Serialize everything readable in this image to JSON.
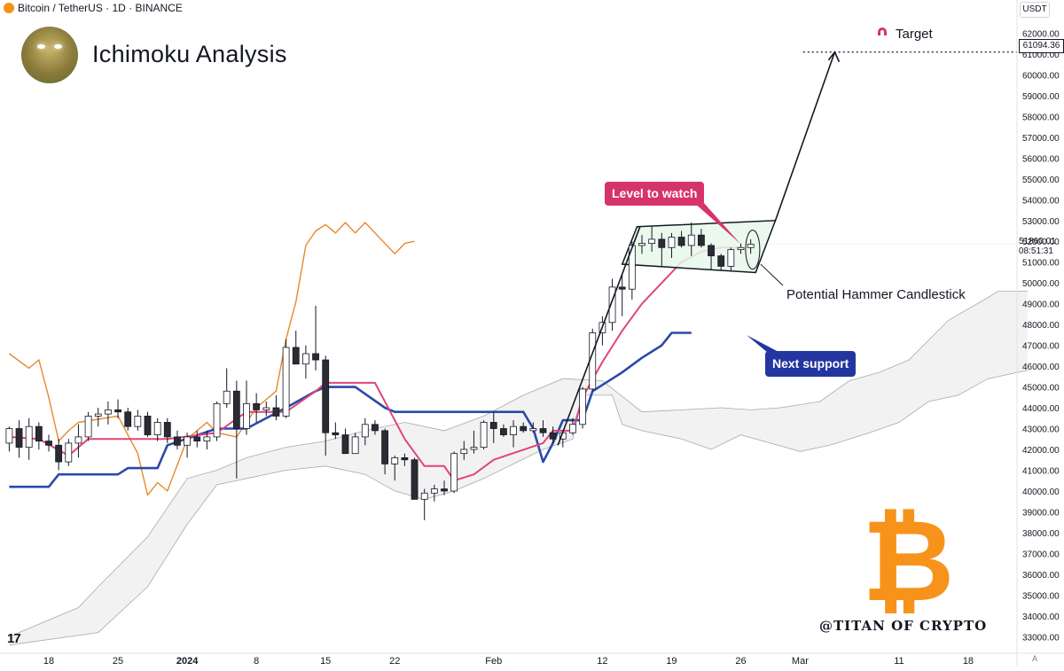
{
  "header": {
    "symbol_line": "Bitcoin / TetherUS · 1D · BINANCE"
  },
  "title": "Ichimoku Analysis",
  "axis_unit": "USDT",
  "target_label": "Target",
  "target_price": "61094.36",
  "current_price": {
    "price": "51860.01",
    "countdown": "08:51:31"
  },
  "annotations": {
    "level_to_watch": "Level to watch",
    "next_support": "Next support",
    "hammer": "Potential Hammer Candlestick"
  },
  "watermark": "@TITAN OF CRYPTO",
  "tv_logo": "17",
  "auto_button": "A",
  "colors": {
    "tenkan": "#e0457b",
    "kijun": "#2b4aa8",
    "chikou": "#e8872c",
    "cloud": "#eeeeee",
    "cloud_edge": "#aaaaaa",
    "callout_pink": "#d6336c",
    "callout_blue": "#2336a0",
    "btc": "#f7931a",
    "box_fill": "#e6f7ea"
  },
  "icons": {
    "coin": "bitcoin-coin-icon",
    "target": "magnet-icon",
    "brand": "bitcoin-logo"
  },
  "chart_data": {
    "type": "candlestick",
    "timeframe": "1D",
    "ylim": [
      32500,
      63000
    ],
    "y_ticks": [
      33000,
      34000,
      35000,
      36000,
      37000,
      38000,
      39000,
      40000,
      41000,
      42000,
      43000,
      44000,
      45000,
      46000,
      47000,
      48000,
      49000,
      50000,
      51000,
      52000,
      53000,
      54000,
      55000,
      56000,
      57000,
      58000,
      59000,
      60000,
      61000,
      62000
    ],
    "x_ticks": [
      {
        "label": "18",
        "day": 0
      },
      {
        "label": "25",
        "day": 7
      },
      {
        "label": "2024",
        "day": 14
      },
      {
        "label": "8",
        "day": 21
      },
      {
        "label": "15",
        "day": 28
      },
      {
        "label": "22",
        "day": 35
      },
      {
        "label": "Feb",
        "day": 45
      },
      {
        "label": "12",
        "day": 56
      },
      {
        "label": "19",
        "day": 63
      },
      {
        "label": "26",
        "day": 70
      },
      {
        "label": "Mar",
        "day": 76
      },
      {
        "label": "11",
        "day": 86
      },
      {
        "label": "18",
        "day": 93
      }
    ],
    "candles": [
      {
        "day": -4,
        "o": 42300,
        "h": 43100,
        "l": 41900,
        "c": 43000
      },
      {
        "day": -3,
        "o": 43000,
        "h": 43400,
        "l": 41600,
        "c": 42100
      },
      {
        "day": -2,
        "o": 42100,
        "h": 43500,
        "l": 41500,
        "c": 43100
      },
      {
        "day": -1,
        "o": 43100,
        "h": 43300,
        "l": 42000,
        "c": 42400
      },
      {
        "day": 0,
        "o": 42400,
        "h": 42700,
        "l": 41900,
        "c": 42200
      },
      {
        "day": 1,
        "o": 42200,
        "h": 42500,
        "l": 41000,
        "c": 41400
      },
      {
        "day": 2,
        "o": 41400,
        "h": 42500,
        "l": 41200,
        "c": 42300
      },
      {
        "day": 3,
        "o": 42300,
        "h": 43200,
        "l": 41600,
        "c": 42600
      },
      {
        "day": 4,
        "o": 42600,
        "h": 43800,
        "l": 42400,
        "c": 43600
      },
      {
        "day": 5,
        "o": 43600,
        "h": 44000,
        "l": 43100,
        "c": 43700
      },
      {
        "day": 6,
        "o": 43700,
        "h": 44300,
        "l": 43200,
        "c": 43900
      },
      {
        "day": 7,
        "o": 43900,
        "h": 44400,
        "l": 43500,
        "c": 43800
      },
      {
        "day": 8,
        "o": 43800,
        "h": 44000,
        "l": 42900,
        "c": 43100
      },
      {
        "day": 9,
        "o": 43100,
        "h": 43900,
        "l": 42900,
        "c": 43600
      },
      {
        "day": 10,
        "o": 43600,
        "h": 43800,
        "l": 42600,
        "c": 42700
      },
      {
        "day": 11,
        "o": 42700,
        "h": 43500,
        "l": 42400,
        "c": 43300
      },
      {
        "day": 12,
        "o": 43300,
        "h": 43500,
        "l": 42300,
        "c": 42600
      },
      {
        "day": 13,
        "o": 42600,
        "h": 42900,
        "l": 42000,
        "c": 42200
      },
      {
        "day": 14,
        "o": 42200,
        "h": 42800,
        "l": 41600,
        "c": 42600
      },
      {
        "day": 15,
        "o": 42600,
        "h": 42900,
        "l": 42100,
        "c": 42400
      },
      {
        "day": 16,
        "o": 42400,
        "h": 42900,
        "l": 42000,
        "c": 42600
      },
      {
        "day": 17,
        "o": 42600,
        "h": 44300,
        "l": 42400,
        "c": 44200
      },
      {
        "day": 18,
        "o": 44200,
        "h": 45900,
        "l": 44000,
        "c": 44800
      },
      {
        "day": 19,
        "o": 44800,
        "h": 45300,
        "l": 40600,
        "c": 43000
      },
      {
        "day": 20,
        "o": 43000,
        "h": 45300,
        "l": 42700,
        "c": 44200
      },
      {
        "day": 21,
        "o": 44200,
        "h": 44700,
        "l": 43300,
        "c": 43900
      },
      {
        "day": 22,
        "o": 43900,
        "h": 44300,
        "l": 43600,
        "c": 44000
      },
      {
        "day": 23,
        "o": 44000,
        "h": 44600,
        "l": 43400,
        "c": 43600
      },
      {
        "day": 24,
        "o": 43600,
        "h": 47300,
        "l": 43500,
        "c": 46900
      },
      {
        "day": 25,
        "o": 46900,
        "h": 47700,
        "l": 46200,
        "c": 46100
      },
      {
        "day": 26,
        "o": 46100,
        "h": 47000,
        "l": 45400,
        "c": 46600
      },
      {
        "day": 27,
        "o": 46600,
        "h": 48900,
        "l": 45800,
        "c": 46300
      },
      {
        "day": 28,
        "o": 46300,
        "h": 46500,
        "l": 41700,
        "c": 42800
      },
      {
        "day": 29,
        "o": 42800,
        "h": 43300,
        "l": 42500,
        "c": 42700
      },
      {
        "day": 30,
        "o": 42700,
        "h": 43000,
        "l": 41800,
        "c": 41800
      },
      {
        "day": 31,
        "o": 41800,
        "h": 42800,
        "l": 41800,
        "c": 42600
      },
      {
        "day": 32,
        "o": 42600,
        "h": 43500,
        "l": 42200,
        "c": 43200
      },
      {
        "day": 33,
        "o": 43200,
        "h": 43400,
        "l": 42700,
        "c": 42900
      },
      {
        "day": 34,
        "o": 42900,
        "h": 43000,
        "l": 40800,
        "c": 41300
      },
      {
        "day": 35,
        "o": 41300,
        "h": 41700,
        "l": 40500,
        "c": 41600
      },
      {
        "day": 36,
        "o": 41600,
        "h": 41800,
        "l": 41200,
        "c": 41500
      },
      {
        "day": 37,
        "o": 41500,
        "h": 41600,
        "l": 39600,
        "c": 39600
      },
      {
        "day": 38,
        "o": 39600,
        "h": 40100,
        "l": 38600,
        "c": 39900
      },
      {
        "day": 39,
        "o": 39900,
        "h": 40300,
        "l": 39500,
        "c": 40100
      },
      {
        "day": 40,
        "o": 40100,
        "h": 40500,
        "l": 39800,
        "c": 40000
      },
      {
        "day": 41,
        "o": 40000,
        "h": 41900,
        "l": 39900,
        "c": 41800
      },
      {
        "day": 42,
        "o": 41800,
        "h": 42400,
        "l": 41500,
        "c": 42000
      },
      {
        "day": 43,
        "o": 42000,
        "h": 42900,
        "l": 41800,
        "c": 42100
      },
      {
        "day": 44,
        "o": 42100,
        "h": 43400,
        "l": 42000,
        "c": 43300
      },
      {
        "day": 45,
        "o": 43300,
        "h": 43800,
        "l": 42300,
        "c": 43000
      },
      {
        "day": 46,
        "o": 43000,
        "h": 43200,
        "l": 42600,
        "c": 42700
      },
      {
        "day": 47,
        "o": 42700,
        "h": 43400,
        "l": 42100,
        "c": 43100
      },
      {
        "day": 48,
        "o": 43100,
        "h": 43300,
        "l": 42800,
        "c": 42900
      },
      {
        "day": 49,
        "o": 42900,
        "h": 43300,
        "l": 42800,
        "c": 43000
      },
      {
        "day": 50,
        "o": 43000,
        "h": 43400,
        "l": 42600,
        "c": 42800
      },
      {
        "day": 51,
        "o": 42800,
        "h": 43100,
        "l": 42300,
        "c": 42500
      },
      {
        "day": 52,
        "o": 42500,
        "h": 42900,
        "l": 42100,
        "c": 42800
      },
      {
        "day": 53,
        "o": 42800,
        "h": 43500,
        "l": 42700,
        "c": 43200
      },
      {
        "day": 54,
        "o": 43200,
        "h": 45000,
        "l": 43000,
        "c": 44900
      },
      {
        "day": 55,
        "o": 44900,
        "h": 47800,
        "l": 44800,
        "c": 47600
      },
      {
        "day": 56,
        "o": 47600,
        "h": 48400,
        "l": 47000,
        "c": 48100
      },
      {
        "day": 57,
        "o": 48100,
        "h": 50200,
        "l": 47700,
        "c": 49800
      },
      {
        "day": 58,
        "o": 49800,
        "h": 50400,
        "l": 48400,
        "c": 49700
      },
      {
        "day": 59,
        "o": 49700,
        "h": 52000,
        "l": 49200,
        "c": 51800
      },
      {
        "day": 60,
        "o": 51800,
        "h": 52300,
        "l": 51400,
        "c": 51900
      },
      {
        "day": 61,
        "o": 51900,
        "h": 52700,
        "l": 51500,
        "c": 52100
      },
      {
        "day": 62,
        "o": 52100,
        "h": 52400,
        "l": 50800,
        "c": 51700
      },
      {
        "day": 63,
        "o": 51700,
        "h": 52400,
        "l": 51200,
        "c": 52200
      },
      {
        "day": 64,
        "o": 52200,
        "h": 52500,
        "l": 51700,
        "c": 51800
      },
      {
        "day": 65,
        "o": 51800,
        "h": 52900,
        "l": 51300,
        "c": 52300
      },
      {
        "day": 66,
        "o": 52300,
        "h": 52600,
        "l": 51700,
        "c": 51800
      },
      {
        "day": 67,
        "o": 51800,
        "h": 51900,
        "l": 50600,
        "c": 51300
      },
      {
        "day": 68,
        "o": 51300,
        "h": 51400,
        "l": 50600,
        "c": 50800
      },
      {
        "day": 69,
        "o": 50800,
        "h": 51700,
        "l": 50600,
        "c": 51600
      },
      {
        "day": 70,
        "o": 51600,
        "h": 51900,
        "l": 51400,
        "c": 51700
      },
      {
        "day": 71,
        "o": 51700,
        "h": 52100,
        "l": 51400,
        "c": 51860
      }
    ],
    "tenkan_sen": [
      [
        -4,
        42600
      ],
      [
        -1,
        42500
      ],
      [
        2,
        41700
      ],
      [
        4,
        42500
      ],
      [
        12,
        42500
      ],
      [
        17,
        42800
      ],
      [
        20,
        43800
      ],
      [
        24,
        43800
      ],
      [
        27,
        44800
      ],
      [
        28,
        45200
      ],
      [
        31,
        45200
      ],
      [
        33,
        45200
      ],
      [
        36,
        42500
      ],
      [
        38,
        41200
      ],
      [
        40,
        41200
      ],
      [
        41,
        40500
      ],
      [
        43,
        40800
      ],
      [
        45,
        41500
      ],
      [
        50,
        42300
      ],
      [
        51,
        42900
      ],
      [
        53,
        42900
      ],
      [
        54,
        44500
      ],
      [
        56,
        46200
      ],
      [
        58,
        47700
      ],
      [
        60,
        49000
      ],
      [
        62,
        50000
      ],
      [
        64,
        51000
      ],
      [
        66,
        51500
      ],
      [
        68,
        51700
      ],
      [
        70,
        51700
      ]
    ],
    "kijun_sen": [
      [
        -4,
        40200
      ],
      [
        0,
        40200
      ],
      [
        1,
        40800
      ],
      [
        7,
        40800
      ],
      [
        8,
        41100
      ],
      [
        11,
        41100
      ],
      [
        12,
        42200
      ],
      [
        17,
        43000
      ],
      [
        20,
        43000
      ],
      [
        24,
        44000
      ],
      [
        27,
        44800
      ],
      [
        28,
        45000
      ],
      [
        31,
        45000
      ],
      [
        34,
        44000
      ],
      [
        35,
        43800
      ],
      [
        48,
        43800
      ],
      [
        49,
        43000
      ],
      [
        50,
        41400
      ],
      [
        51,
        42300
      ],
      [
        52,
        43400
      ],
      [
        54,
        43400
      ],
      [
        55,
        44800
      ],
      [
        57,
        45400
      ],
      [
        58,
        45700
      ],
      [
        60,
        46400
      ],
      [
        62,
        47000
      ],
      [
        63,
        47600
      ],
      [
        65,
        47600
      ]
    ],
    "chikou_span": [
      [
        -4,
        46600
      ],
      [
        -2,
        45900
      ],
      [
        -1,
        46300
      ],
      [
        0,
        44500
      ],
      [
        1,
        42400
      ],
      [
        2,
        42900
      ],
      [
        3,
        43300
      ],
      [
        7,
        43600
      ],
      [
        9,
        41800
      ],
      [
        10,
        39800
      ],
      [
        11,
        40400
      ],
      [
        12,
        40000
      ],
      [
        14,
        42500
      ],
      [
        16,
        43300
      ],
      [
        17,
        42800
      ],
      [
        19,
        42600
      ],
      [
        21,
        44000
      ],
      [
        23,
        44800
      ],
      [
        24,
        47300
      ],
      [
        25,
        49100
      ],
      [
        26,
        51800
      ],
      [
        27,
        52500
      ],
      [
        28,
        52800
      ],
      [
        29,
        52400
      ],
      [
        30,
        52900
      ],
      [
        31,
        52400
      ],
      [
        32,
        52900
      ],
      [
        33,
        52400
      ],
      [
        35,
        51400
      ],
      [
        36,
        51900
      ],
      [
        37,
        52000
      ]
    ],
    "cloud": {
      "span_a": [
        [
          -4,
          33000
        ],
        [
          3,
          34400
        ],
        [
          5,
          35400
        ],
        [
          10,
          37800
        ],
        [
          14,
          40600
        ],
        [
          17,
          41000
        ],
        [
          20,
          41600
        ],
        [
          24,
          42100
        ],
        [
          28,
          42400
        ],
        [
          32,
          42900
        ],
        [
          36,
          43300
        ],
        [
          40,
          42900
        ],
        [
          44,
          43600
        ],
        [
          48,
          44600
        ],
        [
          52,
          45400
        ],
        [
          56,
          45300
        ],
        [
          60,
          43800
        ],
        [
          64,
          43900
        ],
        [
          68,
          44000
        ],
        [
          71,
          43900
        ],
        [
          74,
          44000
        ],
        [
          78,
          44300
        ],
        [
          81,
          45300
        ],
        [
          84,
          45700
        ],
        [
          87,
          46300
        ],
        [
          91,
          48200
        ],
        [
          95,
          49300
        ],
        [
          96,
          49600
        ],
        [
          99,
          49600
        ]
      ],
      "span_b": [
        [
          -4,
          32600
        ],
        [
          5,
          33200
        ],
        [
          10,
          35400
        ],
        [
          14,
          38400
        ],
        [
          17,
          40300
        ],
        [
          20,
          40600
        ],
        [
          24,
          41000
        ],
        [
          28,
          41200
        ],
        [
          32,
          40800
        ],
        [
          35,
          40000
        ],
        [
          38,
          39600
        ],
        [
          41,
          40000
        ],
        [
          44,
          40600
        ],
        [
          47,
          41300
        ],
        [
          50,
          42000
        ],
        [
          53,
          42500
        ],
        [
          54,
          44600
        ],
        [
          57,
          44600
        ],
        [
          58,
          43200
        ],
        [
          60,
          42900
        ],
        [
          64,
          42500
        ],
        [
          67,
          42000
        ],
        [
          70,
          42700
        ],
        [
          73,
          42300
        ],
        [
          76,
          41900
        ],
        [
          79,
          42200
        ],
        [
          83,
          42800
        ],
        [
          86,
          43300
        ],
        [
          89,
          44300
        ],
        [
          92,
          44600
        ],
        [
          95,
          45400
        ],
        [
          99,
          45800
        ]
      ]
    },
    "projection": {
      "from_price": 50900,
      "to_price": 61094.36,
      "label": "Target"
    },
    "consolidation_box": {
      "top": [
        52700,
        53000
      ],
      "bottom": [
        50900,
        50500
      ]
    },
    "current_price": 51860.01,
    "target_price": 61094.36
  }
}
